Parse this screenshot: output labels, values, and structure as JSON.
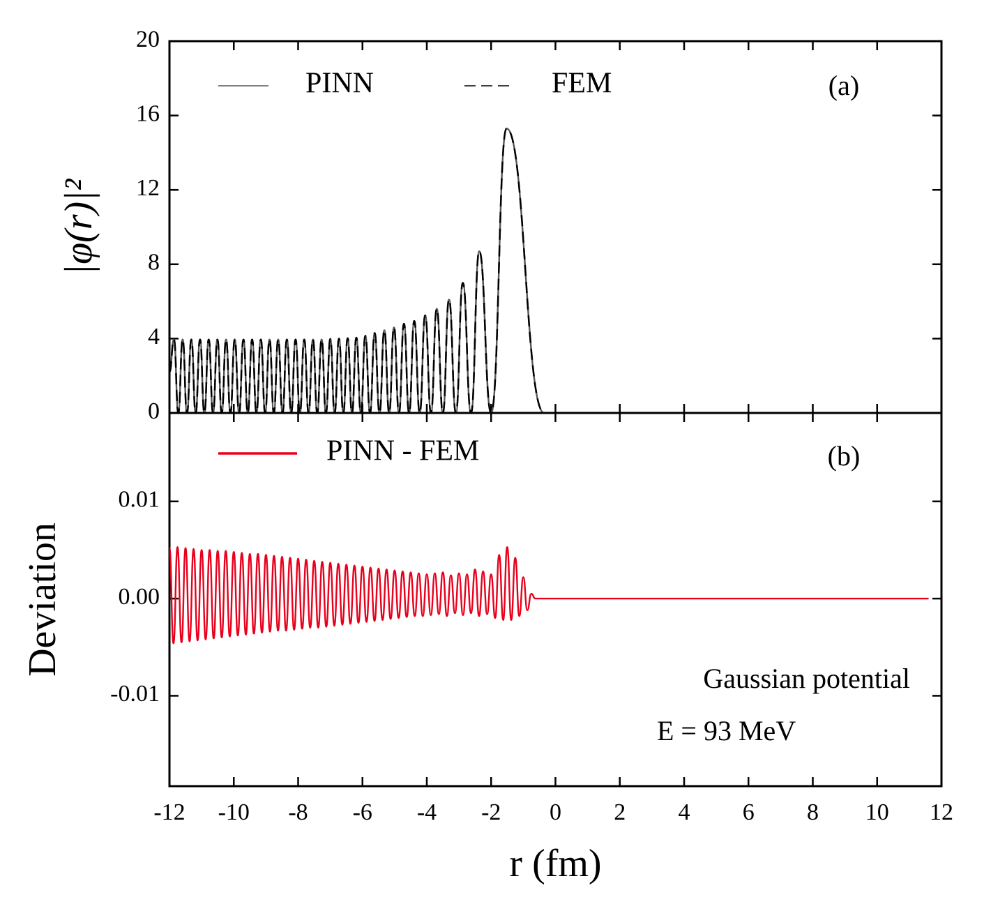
{
  "chart_data": [
    {
      "type": "line",
      "ylabel": "|φ(r)|²",
      "xlim": [
        -12,
        12
      ],
      "xticks": [
        -12,
        -10,
        -8,
        -6,
        -4,
        -2,
        0,
        2,
        4,
        6,
        8,
        10,
        12
      ],
      "ylim": [
        0,
        20
      ],
      "yticks": [
        0,
        4,
        8,
        12,
        16,
        20
      ],
      "legend": "upper left",
      "annotations": [
        "(a)"
      ],
      "x": [
        -12,
        -11.86,
        -11.725,
        -11.59,
        -11.455,
        -11.32,
        -11.185,
        -11.05,
        -10.915,
        -10.78,
        -10.645,
        -10.51,
        -10.375,
        -10.24,
        -10.105,
        -9.97,
        -9.835,
        -9.7,
        -9.565,
        -9.43,
        -9.295,
        -9.16,
        -9.025,
        -8.89,
        -8.755,
        -8.62,
        -8.485,
        -8.35,
        -8.215,
        -8.08,
        -7.945,
        -7.81,
        -7.675,
        -7.54,
        -7.405,
        -7.27,
        -7.135,
        -7.0,
        -6.865,
        -6.73,
        -6.595,
        -6.46,
        -6.325,
        -6.19,
        -6.05,
        -5.91,
        -5.765,
        -5.62,
        -5.47,
        -5.32,
        -5.17,
        -5.02,
        -4.865,
        -4.71,
        -4.55,
        -4.39,
        -4.22,
        -4.05,
        -3.87,
        -3.69,
        -3.5,
        -3.31,
        -3.095,
        -2.88,
        -2.625,
        -2.37,
        -2.0,
        -1.52,
        -0.35,
        11.6
      ],
      "series": [
        {
          "name": "PINN",
          "color": "#555555",
          "linestyle": "solid",
          "values": [
            2.2,
            3.95,
            0,
            3.95,
            0,
            3.95,
            0,
            3.95,
            0,
            3.95,
            0,
            3.95,
            0,
            3.95,
            0,
            3.95,
            0,
            3.95,
            0,
            3.95,
            0,
            3.95,
            0,
            3.95,
            0,
            3.95,
            0,
            3.95,
            0,
            3.95,
            0,
            3.95,
            0,
            3.95,
            0,
            3.95,
            0,
            3.98,
            0,
            4.0,
            0,
            4.02,
            0,
            4.05,
            0,
            4.15,
            0,
            4.3,
            0,
            4.45,
            0,
            4.6,
            0,
            4.8,
            0,
            4.95,
            0,
            5.25,
            0,
            5.6,
            0,
            6.1,
            0,
            7.0,
            0,
            8.7,
            0,
            15.3,
            0,
            0
          ]
        },
        {
          "name": "FEM",
          "color": "#000000",
          "linestyle": "dashed",
          "values": [
            2.2,
            3.95,
            0,
            3.95,
            0,
            3.95,
            0,
            3.95,
            0,
            3.95,
            0,
            3.95,
            0,
            3.95,
            0,
            3.95,
            0,
            3.95,
            0,
            3.95,
            0,
            3.95,
            0,
            3.95,
            0,
            3.95,
            0,
            3.95,
            0,
            3.95,
            0,
            3.95,
            0,
            3.95,
            0,
            3.95,
            0,
            3.98,
            0,
            4.0,
            0,
            4.02,
            0,
            4.05,
            0,
            4.15,
            0,
            4.3,
            0,
            4.45,
            0,
            4.6,
            0,
            4.8,
            0,
            4.95,
            0,
            5.25,
            0,
            5.6,
            0,
            6.1,
            0,
            7.0,
            0,
            8.7,
            0,
            15.3,
            0,
            0
          ]
        }
      ]
    },
    {
      "type": "line",
      "ylabel": "Deviation",
      "xlabel": "r (fm)",
      "xlim": [
        -12,
        12
      ],
      "xticks": [
        -12,
        -10,
        -8,
        -6,
        -4,
        -2,
        0,
        2,
        4,
        6,
        8,
        10,
        12
      ],
      "ylim": [
        -0.0193,
        0.0191
      ],
      "yticks": [
        -0.01,
        {
          "value": 0,
          "label": "0.00"
        },
        0.01
      ],
      "legend": "upper left",
      "annotations": [
        "(b)",
        "Gaussian potential",
        "E = 93 MeV"
      ],
      "x": [
        -12,
        -11.875,
        -11.75,
        -11.625,
        -11.5,
        -11.375,
        -11.25,
        -11.125,
        -11,
        -10.875,
        -10.75,
        -10.625,
        -10.5,
        -10.375,
        -10.25,
        -10.125,
        -10,
        -9.875,
        -9.75,
        -9.625,
        -9.5,
        -9.375,
        -9.25,
        -9.125,
        -9,
        -8.875,
        -8.75,
        -8.625,
        -8.5,
        -8.375,
        -8.25,
        -8.125,
        -8,
        -7.875,
        -7.75,
        -7.625,
        -7.5,
        -7.375,
        -7.25,
        -7.125,
        -7,
        -6.875,
        -6.75,
        -6.625,
        -6.5,
        -6.375,
        -6.25,
        -6.125,
        -6,
        -5.875,
        -5.75,
        -5.625,
        -5.5,
        -5.375,
        -5.25,
        -5.125,
        -5,
        -4.875,
        -4.75,
        -4.625,
        -4.5,
        -4.375,
        -4.25,
        -4.125,
        -4,
        -3.875,
        -3.75,
        -3.625,
        -3.5,
        -3.375,
        -3.25,
        -3.125,
        -3,
        -2.875,
        -2.75,
        -2.625,
        -2.5,
        -2.375,
        -2.25,
        -2.125,
        -2,
        -1.875,
        -1.75,
        -1.625,
        -1.5,
        -1.375,
        -1.25,
        -1.125,
        -1,
        -0.875,
        -0.75,
        -0.625,
        11.6
      ],
      "series": [
        {
          "name": "PINN - FEM",
          "color": "#e8001c",
          "linestyle": "solid",
          "values": [
            0.0052,
            -0.0046,
            0.0053,
            -0.0045,
            0.0052,
            -0.0044,
            0.0051,
            -0.0043,
            0.005,
            -0.0042,
            0.005,
            -0.0041,
            0.0049,
            -0.004,
            0.0049,
            -0.0039,
            0.0048,
            -0.0038,
            0.0047,
            -0.0037,
            0.0046,
            -0.0036,
            0.0046,
            -0.0035,
            0.0045,
            -0.0034,
            0.0044,
            -0.0033,
            0.0043,
            -0.0033,
            0.0042,
            -0.0032,
            0.0041,
            -0.0031,
            0.004,
            -0.003,
            0.0039,
            -0.003,
            0.0038,
            -0.0029,
            0.0037,
            -0.0028,
            0.0036,
            -0.0027,
            0.0035,
            -0.0026,
            0.0034,
            -0.0025,
            0.0033,
            -0.0024,
            0.0032,
            -0.0023,
            0.0031,
            -0.0022,
            0.003,
            -0.0021,
            0.0029,
            -0.002,
            0.0028,
            -0.0019,
            0.0027,
            -0.0018,
            0.0026,
            -0.0018,
            0.0025,
            -0.0017,
            0.0026,
            -0.0016,
            0.0027,
            -0.0018,
            0.0024,
            -0.0015,
            0.0026,
            -0.0017,
            0.0025,
            -0.0015,
            0.003,
            -0.0018,
            0.0028,
            -0.0016,
            0.0025,
            -0.002,
            0.0045,
            -0.0022,
            0.0053,
            -0.0022,
            0.0042,
            -0.0018,
            0.0022,
            -0.0012,
            0.0005,
            0,
            0
          ]
        }
      ]
    }
  ]
}
